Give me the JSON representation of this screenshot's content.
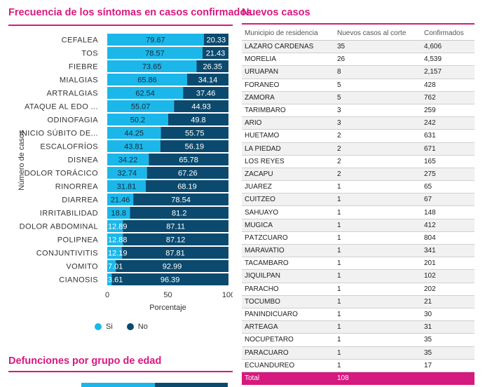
{
  "left": {
    "title": "Frecuencia de los síntomas en casos confirmados",
    "bottom_title": "Defunciones por grupo de edad"
  },
  "right": {
    "title": "Nuevos casos",
    "table": {
      "headers": [
        "Municipio de residencia",
        "Nuevos casos al corte",
        "Confirmados"
      ],
      "rows": [
        [
          "LÁZARO CÁRDENAS",
          "35",
          "4,606"
        ],
        [
          "MORELIA",
          "26",
          "4,539"
        ],
        [
          "URUAPAN",
          "8",
          "2,157"
        ],
        [
          "FORÁNEO",
          "5",
          "428"
        ],
        [
          "ZAMORA",
          "5",
          "762"
        ],
        [
          "TARÍMBARO",
          "3",
          "259"
        ],
        [
          "ARIO",
          "3",
          "242"
        ],
        [
          "HUETAMO",
          "2",
          "631"
        ],
        [
          "LA PIEDAD",
          "2",
          "671"
        ],
        [
          "LOS REYES",
          "2",
          "165"
        ],
        [
          "ZACAPU",
          "2",
          "275"
        ],
        [
          "JUÁREZ",
          "1",
          "65"
        ],
        [
          "CUITZEO",
          "1",
          "67"
        ],
        [
          "SAHUAYO",
          "1",
          "148"
        ],
        [
          "MÚGICA",
          "1",
          "412"
        ],
        [
          "PÁTZCUARO",
          "1",
          "804"
        ],
        [
          "MARAVATÍO",
          "1",
          "341"
        ],
        [
          "TACÁMBARO",
          "1",
          "201"
        ],
        [
          "JIQUILPAN",
          "1",
          "102"
        ],
        [
          "PARACHO",
          "1",
          "202"
        ],
        [
          "TOCUMBO",
          "1",
          "21"
        ],
        [
          "PANINDÍCUARO",
          "1",
          "30"
        ],
        [
          "ARTEAGA",
          "1",
          "31"
        ],
        [
          "NOCUPÉTARO",
          "1",
          "35"
        ],
        [
          "PARÁCUARO",
          "1",
          "35"
        ],
        [
          "ECUANDUREO",
          "1",
          "17"
        ]
      ],
      "total_label": "Total",
      "total_value": "108"
    }
  },
  "colors": {
    "accent": "#d6197f",
    "si": "#1bb7ea",
    "no": "#0b4a6e"
  },
  "chart_data": {
    "type": "bar",
    "orientation": "horizontal",
    "stacked": true,
    "categories": [
      "CEFALEA",
      "TOS",
      "FIEBRE",
      "MIALGIAS",
      "ARTRALGIAS",
      "ATAQUE AL EDO ...",
      "ODINOFAGIA",
      "INICIO SÚBITO DE...",
      "ESCALOFRÍOS",
      "DISNEA",
      "DOLOR TORÁCICO",
      "RINORREA",
      "DIARREA",
      "IRRITABILIDAD",
      "DOLOR ABDOMINAL",
      "POLIPNEA",
      "CONJUNTIVITIS",
      "VOMITO",
      "CIANOSIS"
    ],
    "series": [
      {
        "name": "Si",
        "values": [
          79.67,
          78.57,
          73.65,
          65.86,
          62.54,
          55.07,
          50.2,
          44.25,
          43.81,
          34.22,
          32.74,
          31.81,
          21.46,
          18.8,
          12.89,
          12.88,
          12.19,
          7.01,
          3.61
        ]
      },
      {
        "name": "No",
        "values": [
          20.33,
          21.43,
          26.35,
          34.14,
          37.46,
          44.93,
          49.8,
          55.75,
          56.19,
          65.78,
          67.26,
          68.19,
          78.54,
          81.2,
          87.11,
          87.12,
          87.81,
          92.99,
          96.39
        ]
      }
    ],
    "xlabel": "Porcentaje",
    "ylabel": "Número de casos",
    "xlim": [
      0,
      100
    ],
    "xticks": [
      "0",
      "50",
      "100"
    ],
    "legend": "bottom"
  }
}
